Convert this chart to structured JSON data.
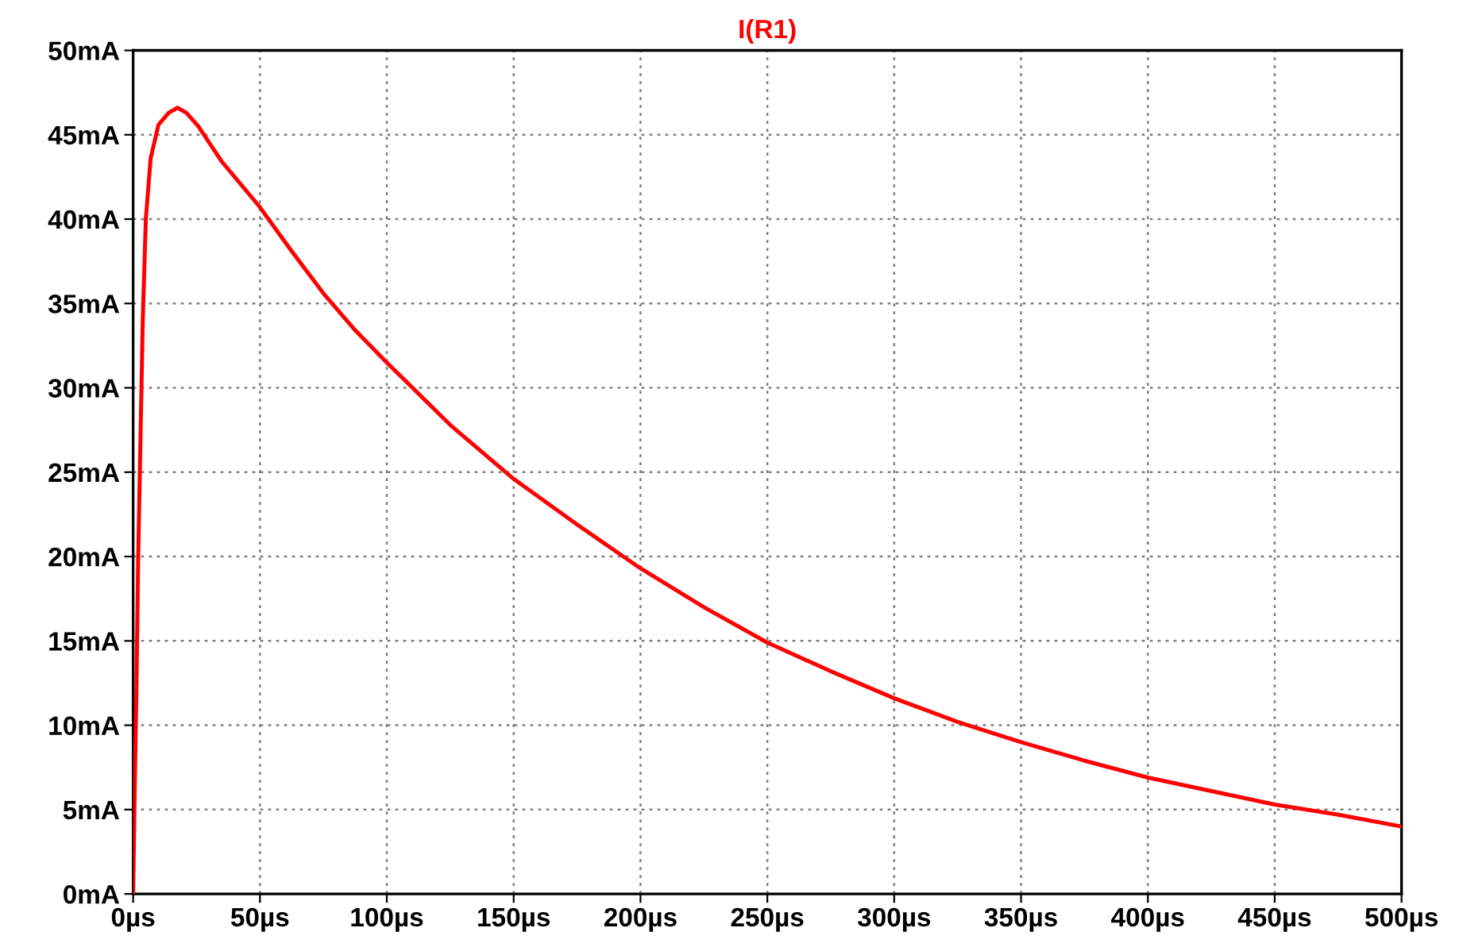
{
  "chart_data": {
    "type": "line",
    "series": [
      {
        "name": "I(R1)",
        "color": "#ff0000",
        "x": [
          0,
          0.6,
          1.25,
          2,
          3.8,
          5,
          6.9,
          10,
          14,
          17.5,
          21,
          25.7,
          35,
          49.5,
          62,
          75,
          87,
          100,
          125,
          150,
          175,
          200,
          225,
          250,
          275,
          300,
          325,
          350,
          375,
          400,
          425,
          450,
          475,
          500
        ],
        "values": [
          0,
          6,
          11.6,
          20,
          34,
          40,
          43.6,
          45.6,
          46.3,
          46.6,
          46.3,
          45.5,
          43.4,
          40.8,
          38.2,
          35.6,
          33.5,
          31.5,
          27.8,
          24.6,
          21.9,
          19.3,
          17.0,
          14.9,
          13.2,
          11.6,
          10.2,
          9.0,
          7.9,
          6.9,
          6.1,
          5.3,
          4.7,
          4.0
        ]
      }
    ],
    "xlim": [
      0,
      500
    ],
    "ylim": [
      0,
      50
    ],
    "xticks": [
      {
        "value": 0,
        "label": "0µs"
      },
      {
        "value": 50,
        "label": "50µs"
      },
      {
        "value": 100,
        "label": "100µs"
      },
      {
        "value": 150,
        "label": "150µs"
      },
      {
        "value": 200,
        "label": "200µs"
      },
      {
        "value": 250,
        "label": "250µs"
      },
      {
        "value": 300,
        "label": "300µs"
      },
      {
        "value": 350,
        "label": "350µs"
      },
      {
        "value": 400,
        "label": "400µs"
      },
      {
        "value": 450,
        "label": "450µs"
      },
      {
        "value": 500,
        "label": "500µs"
      }
    ],
    "yticks": [
      {
        "value": 0,
        "label": "0mA"
      },
      {
        "value": 5,
        "label": "5mA"
      },
      {
        "value": 10,
        "label": "10mA"
      },
      {
        "value": 15,
        "label": "15mA"
      },
      {
        "value": 20,
        "label": "20mA"
      },
      {
        "value": 25,
        "label": "25mA"
      },
      {
        "value": 30,
        "label": "30mA"
      },
      {
        "value": 35,
        "label": "35mA"
      },
      {
        "value": 40,
        "label": "40mA"
      },
      {
        "value": 45,
        "label": "45mA"
      },
      {
        "value": 50,
        "label": "50mA"
      }
    ],
    "grid": true,
    "legend": false,
    "line_style": "solid",
    "marker": "none"
  }
}
